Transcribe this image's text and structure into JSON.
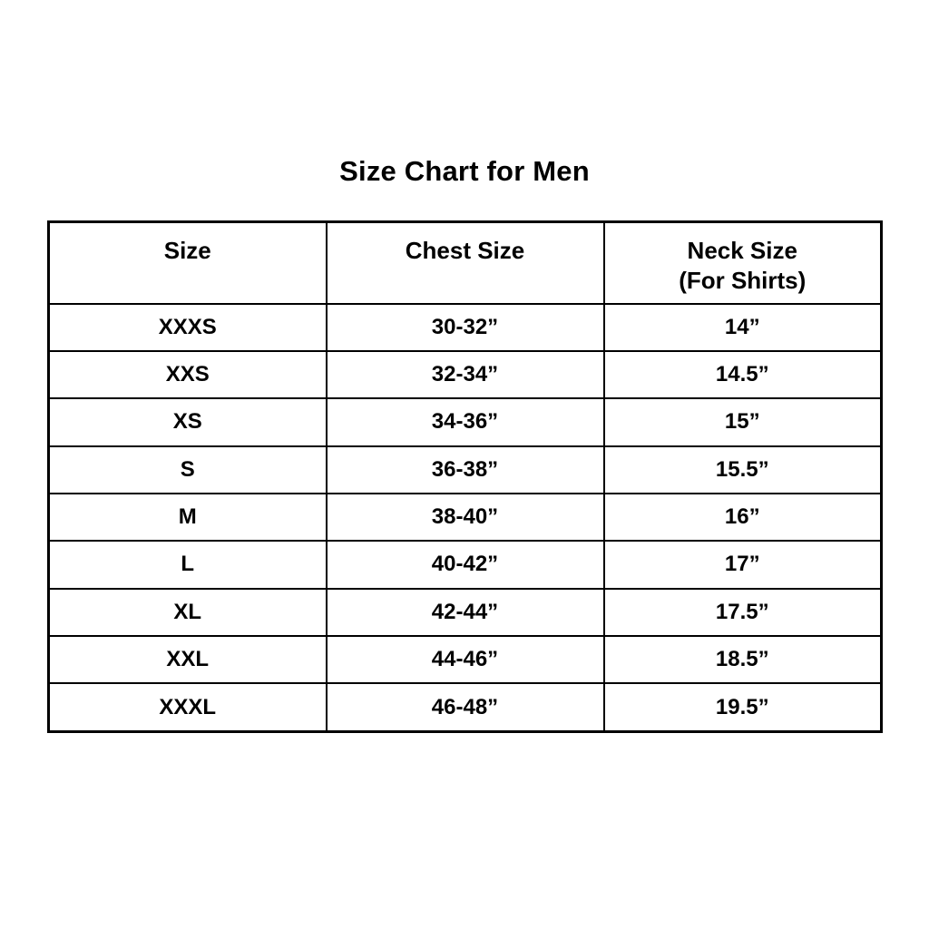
{
  "page": {
    "background_color": "#ffffff",
    "text_color": "#000000",
    "border_color": "#000000"
  },
  "title": "Size Chart for Men",
  "chart_data": {
    "type": "table",
    "title": "Size Chart for Men",
    "columns": [
      "Size",
      "Chest Size",
      "Neck Size\n(For Shirts)"
    ],
    "rows": [
      [
        "XXXS",
        "30-32”",
        "14”"
      ],
      [
        "XXS",
        "32-34”",
        "14.5”"
      ],
      [
        "XS",
        "34-36”",
        "15”"
      ],
      [
        "S",
        "36-38”",
        "15.5”"
      ],
      [
        "M",
        "38-40”",
        "16”"
      ],
      [
        "L",
        "40-42”",
        "17”"
      ],
      [
        "XL",
        "42-44”",
        "17.5”"
      ],
      [
        "XXL",
        "44-46”",
        "18.5”"
      ],
      [
        "XXXL",
        "46-48”",
        "19.5”"
      ]
    ],
    "layout": {
      "columns_equal_width": true,
      "header_two_line_column_index": 2,
      "grid": "all-borders"
    }
  }
}
